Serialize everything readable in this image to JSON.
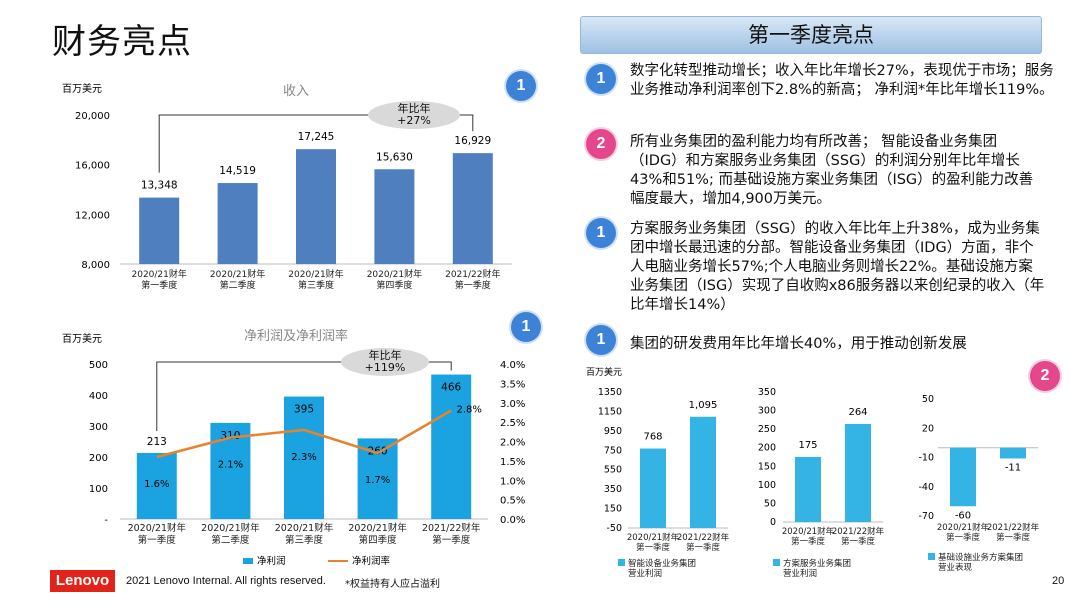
{
  "page": {
    "title": "财务亮点",
    "page_number": "20"
  },
  "right_panel": {
    "header": "第一季度亮点"
  },
  "highlights": [
    {
      "badge": "1",
      "color": "blue",
      "text": "数字化转型推动增长；收入年比年增长27%，表现优于市场；服务业务推动净利润率创下2.8%的新高； 净利润*年比年增长119%。"
    },
    {
      "badge": "2",
      "color": "pink",
      "text": "所有业务集团的盈利能力均有所改善； 智能设备业务集团（IDG）和方案服务业务集团（SSG）的利润分别年比年增长43%和51%; 而基础设施方案业务集团（ISG）的盈利能力改善幅度最大，增加4,900万美元。"
    },
    {
      "badge": "1",
      "color": "blue",
      "text": "方案服务业务集团（SSG）的收入年比年上升38%，成为业务集团中增长最迅速的分部。智能设备业务集团（IDG）方面，非个人电脑业务增长57%;个人电脑业务则增长22%。基础设施方案业务集团（ISG）实现了自收购x86服务器以来创纪录的收入（年比年增长14%）"
    },
    {
      "badge": "1",
      "color": "blue",
      "text": "集团的研发费用年比年增长40%，用于推动创新发展"
    }
  ],
  "badges": {
    "revenue": "1",
    "net_profit": "1",
    "segments": "2"
  },
  "colors": {
    "bar_dark": "#4f7fbf",
    "bar_cyan": "#1aa3e0",
    "line_orange": "#e9822c",
    "seg_bar": "#33b4e5",
    "header_blue": "#b8d2ec"
  },
  "chart_data": [
    {
      "id": "revenue",
      "type": "bar",
      "title": "收入",
      "unit_label": "百万美元",
      "categories": [
        "2020/21财年\n第一季度",
        "2020/21财年\n第二季度",
        "2020/21财年\n第三季度",
        "2020/21财年\n第四季度",
        "2021/22财年\n第一季度"
      ],
      "values": [
        13348,
        14519,
        17245,
        15630,
        16929
      ],
      "value_labels": [
        "13,348",
        "14,519",
        "17,245",
        "15,630",
        "16,929"
      ],
      "ylim": [
        8000,
        20000
      ],
      "yticks": [
        "8,000",
        "12,000",
        "16,000",
        "20,000"
      ],
      "ytick_values": [
        8000,
        12000,
        16000,
        20000
      ],
      "annotation": "年比年\n+27%"
    },
    {
      "id": "net_profit",
      "type": "bar+line",
      "title": "净利润及净利润率",
      "unit_label": "百万美元",
      "categories": [
        "2020/21财年\n第一季度",
        "2020/21财年\n第二季度",
        "2020/21财年\n第三季度",
        "2020/21财年\n第四季度",
        "2021/22财年\n第一季度"
      ],
      "series": [
        {
          "name": "净利润",
          "type": "bar",
          "values": [
            213,
            310,
            395,
            260,
            466
          ],
          "labels": [
            "213",
            "310",
            "395",
            "260",
            "466"
          ]
        },
        {
          "name": "净利润率",
          "type": "line",
          "values": [
            1.6,
            2.1,
            2.3,
            1.7,
            2.8
          ],
          "labels": [
            "1.6%",
            "2.1%",
            "2.3%",
            "1.7%",
            "2.8%"
          ]
        }
      ],
      "ylim": [
        0,
        500
      ],
      "yticks": [
        "-",
        "100",
        "200",
        "300",
        "400",
        "500"
      ],
      "ytick_values": [
        0,
        100,
        200,
        300,
        400,
        500
      ],
      "y2lim": [
        0,
        4
      ],
      "y2ticks": [
        "0.0%",
        "0.5%",
        "1.0%",
        "1.5%",
        "2.0%",
        "2.5%",
        "3.0%",
        "3.5%",
        "4.0%"
      ],
      "y2tick_values": [
        0,
        0.5,
        1,
        1.5,
        2,
        2.5,
        3,
        3.5,
        4
      ],
      "annotation": "年比年\n+119%",
      "legend": [
        "净利润",
        "净利润率"
      ]
    },
    {
      "id": "idg",
      "type": "bar",
      "unit_label": "百万美元",
      "categories": [
        "2020/21财年\n第一季度",
        "2021/22财年\n第一季度"
      ],
      "values": [
        768,
        1095
      ],
      "value_labels": [
        "768",
        "1,095"
      ],
      "ylim": [
        -50,
        1350
      ],
      "yticks": [
        "-50",
        "150",
        "350",
        "550",
        "750",
        "950",
        "1150",
        "1350"
      ],
      "ytick_values": [
        -50,
        150,
        350,
        550,
        750,
        950,
        1150,
        1350
      ],
      "legend": "智能设备业务集团\n营业利润"
    },
    {
      "id": "ssg",
      "type": "bar",
      "categories": [
        "2020/21财年\n第一季度",
        "2021/22财年\n第一季度"
      ],
      "values": [
        175,
        264
      ],
      "value_labels": [
        "175",
        "264"
      ],
      "ylim": [
        0,
        350
      ],
      "yticks": [
        "0",
        "50",
        "100",
        "150",
        "200",
        "250",
        "300",
        "350"
      ],
      "ytick_values": [
        0,
        50,
        100,
        150,
        200,
        250,
        300,
        350
      ],
      "legend": "方案服务业务集团\n营业利润"
    },
    {
      "id": "isg",
      "type": "bar",
      "categories": [
        "2020/21财年\n第一季度",
        "2021/22财年\n第一季度"
      ],
      "values": [
        -60,
        -11
      ],
      "value_labels": [
        "-60",
        "-11"
      ],
      "ylim": [
        -70,
        50
      ],
      "yticks": [
        "-70",
        "-40",
        "-10",
        "20",
        "50"
      ],
      "ytick_values": [
        -70,
        -40,
        -10,
        20,
        50
      ],
      "legend": "基础设施业务方案集团\n营业表现"
    }
  ],
  "footer": {
    "logo": "Lenovo",
    "copyright": "2021 Lenovo Internal. All rights reserved.",
    "note": "*权益持有人应占溢利"
  }
}
